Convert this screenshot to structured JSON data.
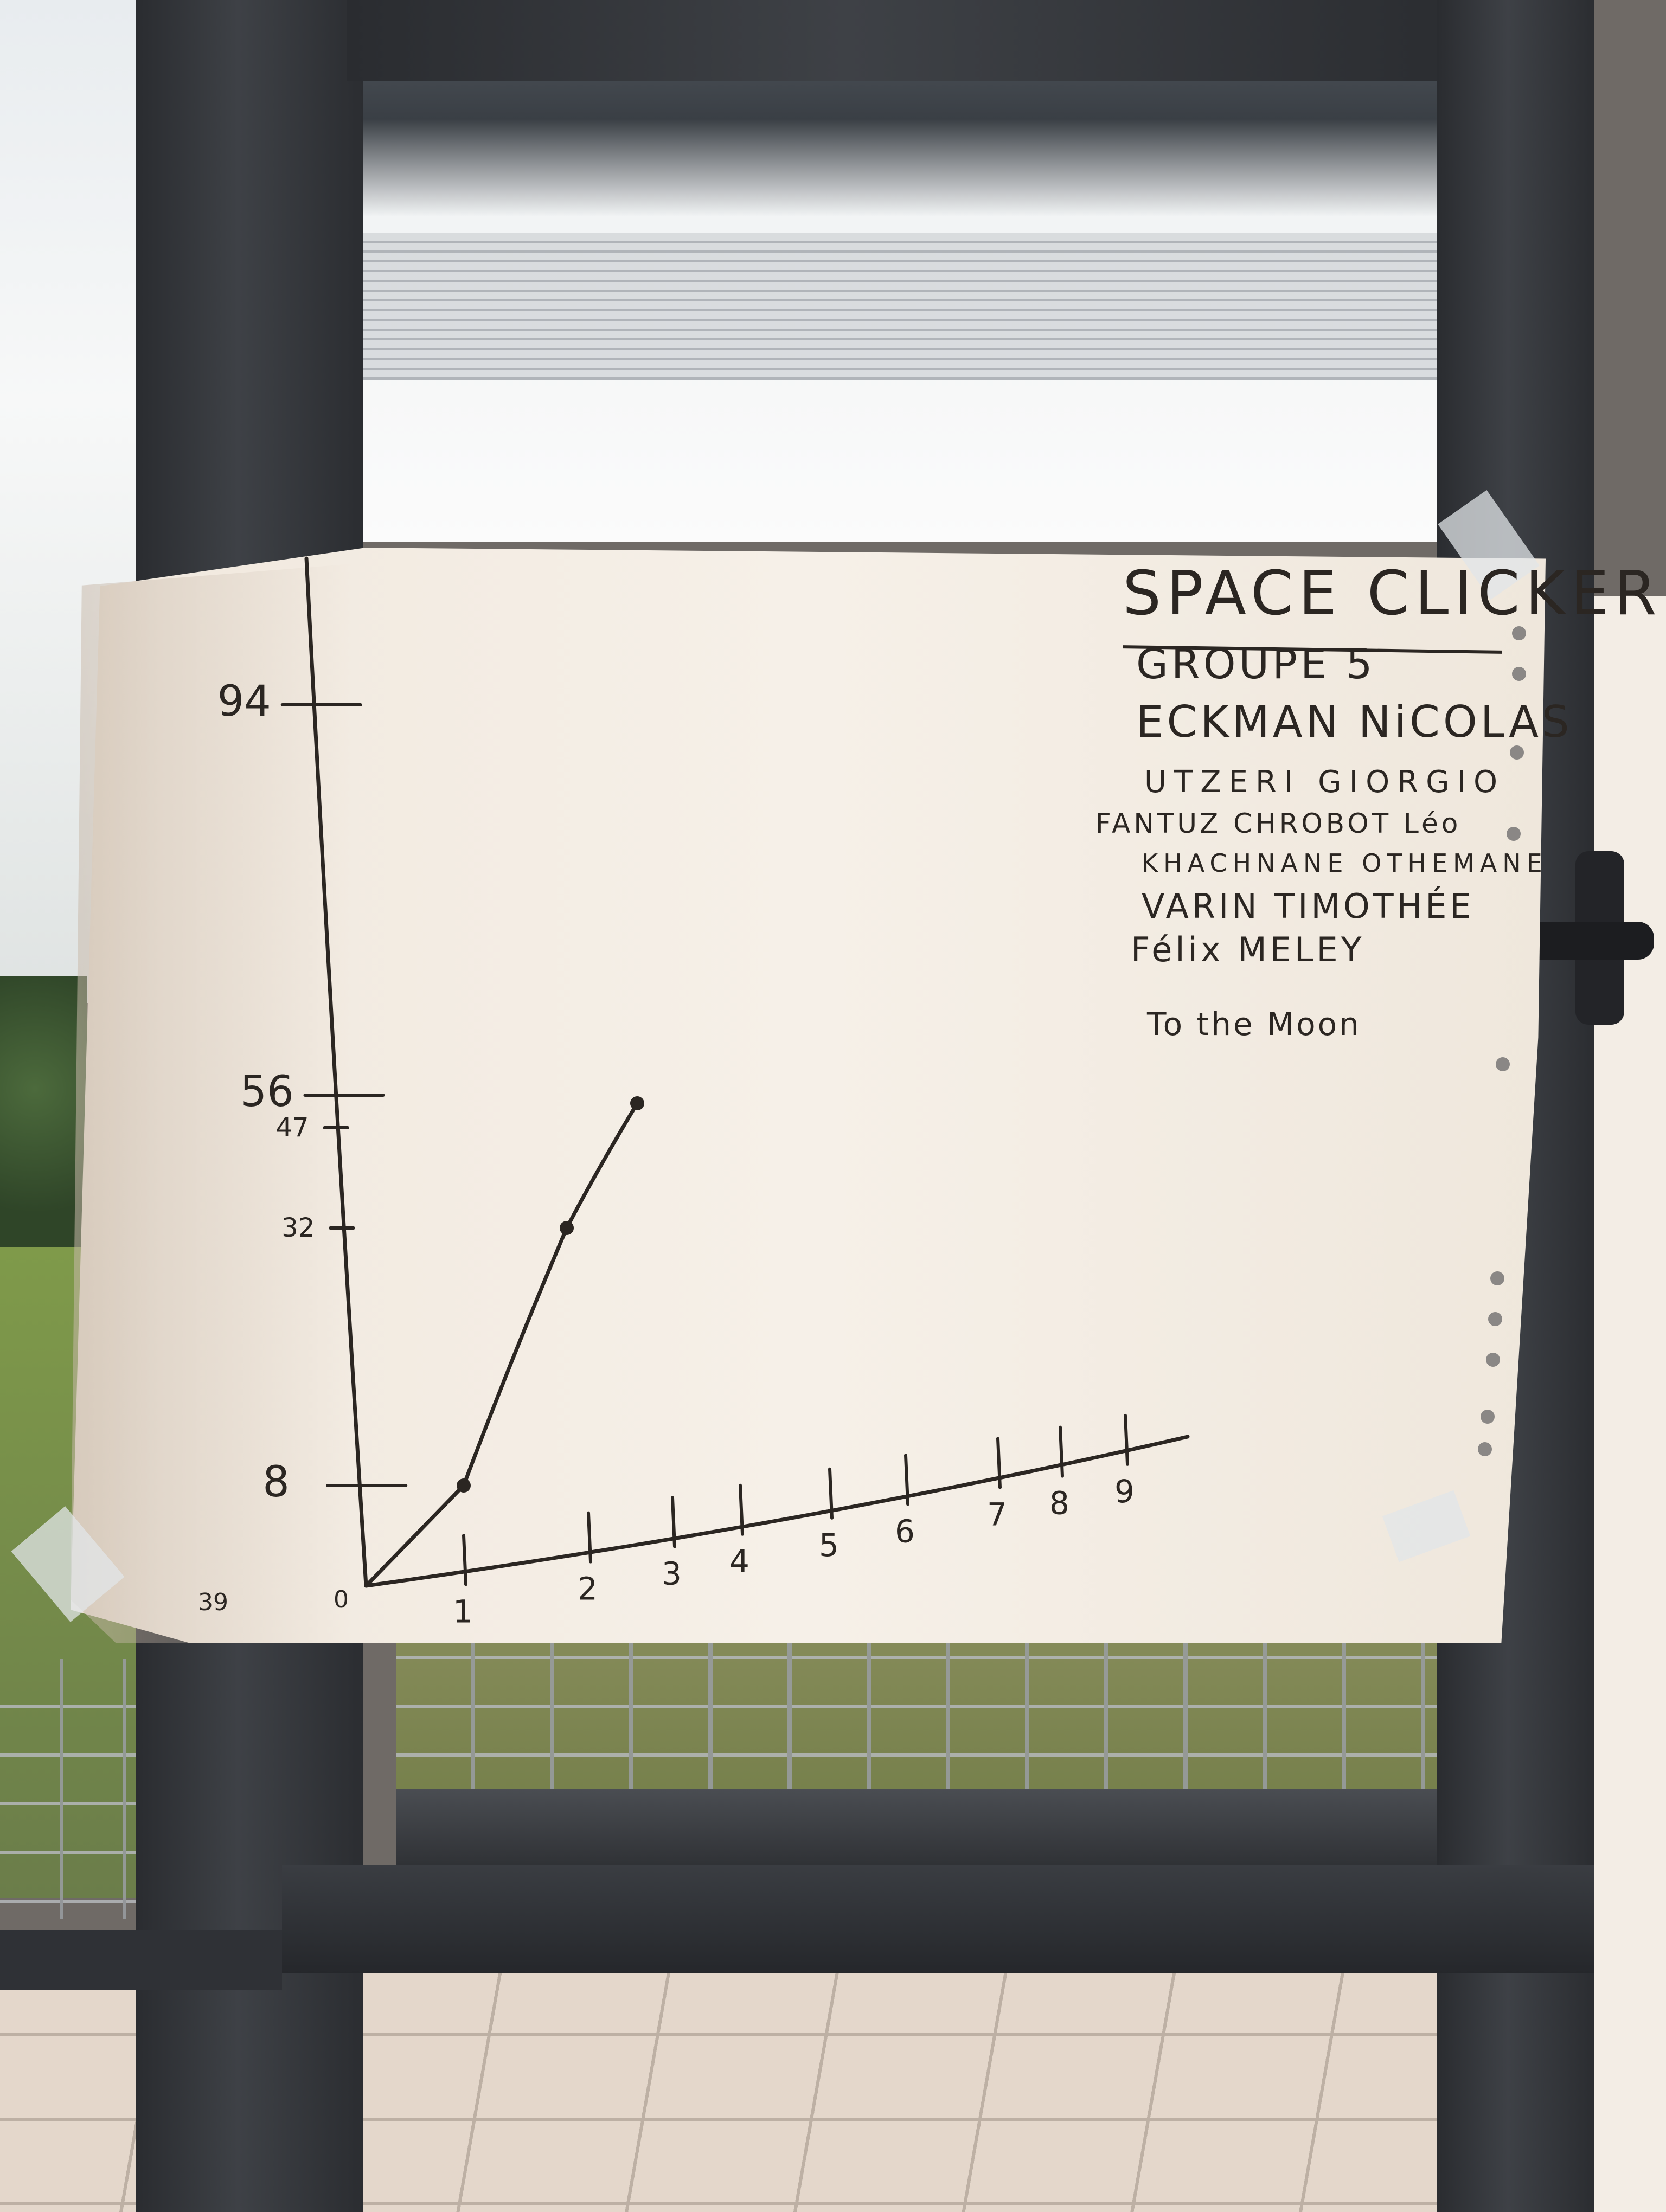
{
  "poster": {
    "title": "SPACE CLICKER",
    "group": "GROUPE 5",
    "members": [
      "ECKMAN NiCOLAS",
      "UTZERI GIORGIO",
      "FANTUZ CHROBOT Léo",
      "KHACHNANE OTHEMANE",
      "VARIN TIMOTHÉE",
      "Félix MELEY"
    ],
    "motto": "To the Moon",
    "stray_label": "39"
  },
  "chart_data": {
    "type": "line",
    "y_ticks": [
      "94",
      "56",
      "47",
      "32",
      "8"
    ],
    "x_ticks": [
      "0",
      "1",
      "2",
      "3",
      "4",
      "5",
      "6",
      "7",
      "8",
      "9"
    ],
    "series": [
      {
        "x": [
          0,
          1,
          2,
          2.5
        ],
        "y": [
          0,
          8,
          32,
          47
        ]
      }
    ]
  }
}
